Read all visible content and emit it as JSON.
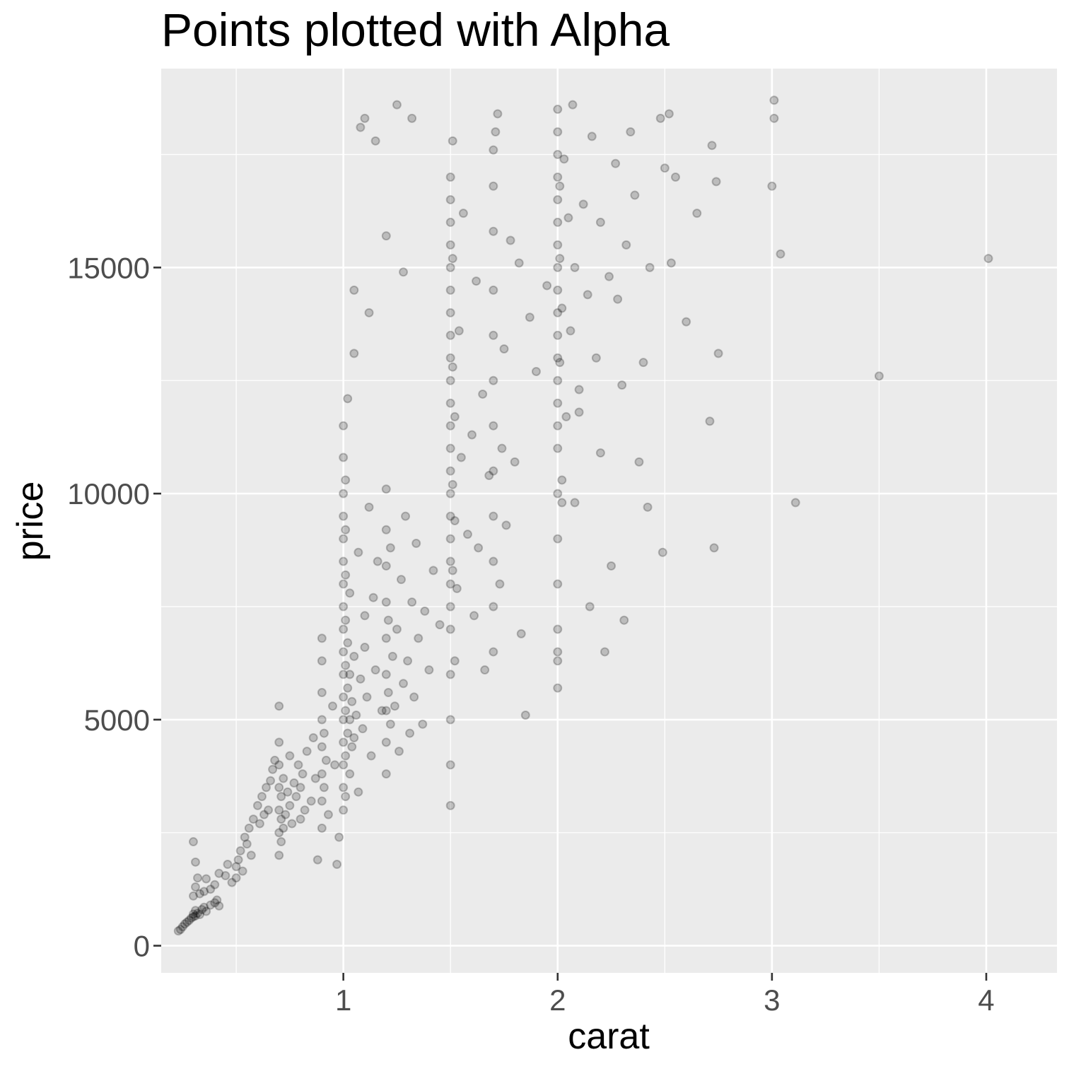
{
  "chart_data": {
    "type": "scatter",
    "title": "Points plotted with Alpha",
    "xlabel": "carat",
    "ylabel": "price",
    "xlim": [
      0.15,
      4.33
    ],
    "ylim": [
      -600,
      19400
    ],
    "x_ticks": [
      1,
      2,
      3,
      4
    ],
    "x_tick_labels": [
      "1",
      "2",
      "3",
      "4"
    ],
    "y_ticks": [
      0,
      5000,
      10000,
      15000
    ],
    "y_tick_labels": [
      "0",
      "5000",
      "10000",
      "15000"
    ],
    "grid": true,
    "point_alpha": 0.2,
    "points": [
      [
        0.23,
        326
      ],
      [
        0.24,
        360
      ],
      [
        0.25,
        420
      ],
      [
        0.26,
        480
      ],
      [
        0.27,
        520
      ],
      [
        0.28,
        560
      ],
      [
        0.29,
        610
      ],
      [
        0.3,
        640
      ],
      [
        0.3,
        700
      ],
      [
        0.31,
        660
      ],
      [
        0.31,
        780
      ],
      [
        0.32,
        720
      ],
      [
        0.33,
        690
      ],
      [
        0.34,
        800
      ],
      [
        0.35,
        850
      ],
      [
        0.36,
        760
      ],
      [
        0.38,
        900
      ],
      [
        0.4,
        950
      ],
      [
        0.41,
        1010
      ],
      [
        0.42,
        880
      ],
      [
        0.3,
        1100
      ],
      [
        0.31,
        1300
      ],
      [
        0.32,
        1500
      ],
      [
        0.3,
        2300
      ],
      [
        0.31,
        1850
      ],
      [
        0.33,
        1150
      ],
      [
        0.35,
        1200
      ],
      [
        0.36,
        1480
      ],
      [
        0.38,
        1250
      ],
      [
        0.4,
        1350
      ],
      [
        0.42,
        1600
      ],
      [
        0.45,
        1550
      ],
      [
        0.46,
        1800
      ],
      [
        0.48,
        1400
      ],
      [
        0.5,
        1500
      ],
      [
        0.5,
        1750
      ],
      [
        0.51,
        1900
      ],
      [
        0.52,
        2100
      ],
      [
        0.53,
        1650
      ],
      [
        0.54,
        2400
      ],
      [
        0.55,
        2250
      ],
      [
        0.56,
        2600
      ],
      [
        0.57,
        2000
      ],
      [
        0.58,
        2800
      ],
      [
        0.6,
        3100
      ],
      [
        0.61,
        2700
      ],
      [
        0.62,
        3300
      ],
      [
        0.63,
        2900
      ],
      [
        0.64,
        3500
      ],
      [
        0.65,
        3000
      ],
      [
        0.66,
        3650
      ],
      [
        0.67,
        3900
      ],
      [
        0.68,
        4100
      ],
      [
        0.7,
        2000
      ],
      [
        0.7,
        2500
      ],
      [
        0.7,
        3000
      ],
      [
        0.7,
        3500
      ],
      [
        0.7,
        4000
      ],
      [
        0.7,
        4500
      ],
      [
        0.7,
        5300
      ],
      [
        0.71,
        2300
      ],
      [
        0.71,
        2800
      ],
      [
        0.71,
        3300
      ],
      [
        0.72,
        2600
      ],
      [
        0.72,
        3700
      ],
      [
        0.73,
        2900
      ],
      [
        0.74,
        3400
      ],
      [
        0.75,
        3100
      ],
      [
        0.75,
        4200
      ],
      [
        0.76,
        2700
      ],
      [
        0.77,
        3600
      ],
      [
        0.78,
        3300
      ],
      [
        0.79,
        4000
      ],
      [
        0.8,
        2800
      ],
      [
        0.8,
        3500
      ],
      [
        0.81,
        3800
      ],
      [
        0.82,
        3000
      ],
      [
        0.83,
        4300
      ],
      [
        0.85,
        3200
      ],
      [
        0.86,
        4600
      ],
      [
        0.87,
        3700
      ],
      [
        0.88,
        1900
      ],
      [
        0.9,
        2600
      ],
      [
        0.9,
        3200
      ],
      [
        0.9,
        3800
      ],
      [
        0.9,
        4400
      ],
      [
        0.9,
        5000
      ],
      [
        0.9,
        5600
      ],
      [
        0.9,
        6300
      ],
      [
        0.9,
        6800
      ],
      [
        0.91,
        3500
      ],
      [
        0.91,
        4700
      ],
      [
        0.92,
        4100
      ],
      [
        0.93,
        2900
      ],
      [
        0.95,
        5300
      ],
      [
        0.96,
        4000
      ],
      [
        0.97,
        1800
      ],
      [
        0.98,
        2400
      ],
      [
        1.0,
        3000
      ],
      [
        1.0,
        3500
      ],
      [
        1.0,
        4000
      ],
      [
        1.0,
        4500
      ],
      [
        1.0,
        5000
      ],
      [
        1.0,
        5500
      ],
      [
        1.0,
        6000
      ],
      [
        1.0,
        6500
      ],
      [
        1.0,
        7000
      ],
      [
        1.0,
        7500
      ],
      [
        1.0,
        8000
      ],
      [
        1.0,
        8500
      ],
      [
        1.0,
        9000
      ],
      [
        1.0,
        9500
      ],
      [
        1.0,
        10000
      ],
      [
        1.0,
        10800
      ],
      [
        1.0,
        11500
      ],
      [
        1.01,
        3300
      ],
      [
        1.01,
        4200
      ],
      [
        1.01,
        5200
      ],
      [
        1.01,
        6200
      ],
      [
        1.01,
        7200
      ],
      [
        1.01,
        8200
      ],
      [
        1.01,
        9200
      ],
      [
        1.01,
        10300
      ],
      [
        1.02,
        4700
      ],
      [
        1.02,
        5700
      ],
      [
        1.02,
        6700
      ],
      [
        1.02,
        12100
      ],
      [
        1.03,
        3800
      ],
      [
        1.03,
        5000
      ],
      [
        1.03,
        6000
      ],
      [
        1.03,
        7800
      ],
      [
        1.04,
        4400
      ],
      [
        1.04,
        5400
      ],
      [
        1.05,
        4600
      ],
      [
        1.05,
        6400
      ],
      [
        1.06,
        5100
      ],
      [
        1.07,
        3400
      ],
      [
        1.07,
        8700
      ],
      [
        1.08,
        5900
      ],
      [
        1.09,
        4800
      ],
      [
        1.1,
        6600
      ],
      [
        1.1,
        7300
      ],
      [
        1.11,
        5500
      ],
      [
        1.12,
        9700
      ],
      [
        1.13,
        4200
      ],
      [
        1.14,
        7700
      ],
      [
        1.15,
        6100
      ],
      [
        1.16,
        8500
      ],
      [
        1.18,
        5200
      ],
      [
        1.2,
        3800
      ],
      [
        1.2,
        4500
      ],
      [
        1.2,
        5200
      ],
      [
        1.2,
        6000
      ],
      [
        1.2,
        6800
      ],
      [
        1.2,
        7600
      ],
      [
        1.2,
        8400
      ],
      [
        1.2,
        9200
      ],
      [
        1.2,
        10100
      ],
      [
        1.21,
        5600
      ],
      [
        1.21,
        7200
      ],
      [
        1.22,
        4900
      ],
      [
        1.22,
        8800
      ],
      [
        1.23,
        6400
      ],
      [
        1.24,
        5300
      ],
      [
        1.25,
        7000
      ],
      [
        1.26,
        4300
      ],
      [
        1.27,
        8100
      ],
      [
        1.28,
        5800
      ],
      [
        1.29,
        9500
      ],
      [
        1.3,
        6300
      ],
      [
        1.31,
        4700
      ],
      [
        1.32,
        7600
      ],
      [
        1.33,
        5500
      ],
      [
        1.34,
        8900
      ],
      [
        1.35,
        6800
      ],
      [
        1.37,
        4900
      ],
      [
        1.38,
        7400
      ],
      [
        1.4,
        6100
      ],
      [
        1.42,
        8300
      ],
      [
        1.45,
        7100
      ],
      [
        1.5,
        3100
      ],
      [
        1.5,
        4000
      ],
      [
        1.5,
        5000
      ],
      [
        1.5,
        6000
      ],
      [
        1.5,
        7000
      ],
      [
        1.5,
        7500
      ],
      [
        1.5,
        8000
      ],
      [
        1.5,
        8500
      ],
      [
        1.5,
        9000
      ],
      [
        1.5,
        9500
      ],
      [
        1.5,
        10000
      ],
      [
        1.5,
        10500
      ],
      [
        1.5,
        11000
      ],
      [
        1.5,
        11500
      ],
      [
        1.5,
        12000
      ],
      [
        1.5,
        12500
      ],
      [
        1.5,
        13000
      ],
      [
        1.5,
        13500
      ],
      [
        1.5,
        14000
      ],
      [
        1.5,
        14500
      ],
      [
        1.5,
        15000
      ],
      [
        1.5,
        15500
      ],
      [
        1.5,
        16000
      ],
      [
        1.5,
        16500
      ],
      [
        1.5,
        17000
      ],
      [
        1.51,
        8300
      ],
      [
        1.51,
        10200
      ],
      [
        1.51,
        12800
      ],
      [
        1.51,
        15200
      ],
      [
        1.51,
        17800
      ],
      [
        1.52,
        6300
      ],
      [
        1.52,
        9400
      ],
      [
        1.52,
        11700
      ],
      [
        1.53,
        7900
      ],
      [
        1.54,
        13600
      ],
      [
        1.55,
        10800
      ],
      [
        1.56,
        16200
      ],
      [
        1.58,
        9100
      ],
      [
        1.6,
        11300
      ],
      [
        1.61,
        7300
      ],
      [
        1.62,
        14700
      ],
      [
        1.63,
        8800
      ],
      [
        1.65,
        12200
      ],
      [
        1.66,
        6100
      ],
      [
        1.68,
        10400
      ],
      [
        1.7,
        6500
      ],
      [
        1.7,
        7500
      ],
      [
        1.7,
        8500
      ],
      [
        1.7,
        9500
      ],
      [
        1.7,
        10500
      ],
      [
        1.7,
        11500
      ],
      [
        1.7,
        12500
      ],
      [
        1.7,
        13500
      ],
      [
        1.7,
        14500
      ],
      [
        1.7,
        15800
      ],
      [
        1.7,
        16800
      ],
      [
        1.7,
        17600
      ],
      [
        1.71,
        18000
      ],
      [
        1.72,
        18400
      ],
      [
        1.73,
        8000
      ],
      [
        1.74,
        11000
      ],
      [
        1.75,
        13200
      ],
      [
        1.76,
        9300
      ],
      [
        1.78,
        15600
      ],
      [
        1.8,
        10700
      ],
      [
        1.82,
        15100
      ],
      [
        1.83,
        6900
      ],
      [
        1.85,
        5100
      ],
      [
        1.87,
        13900
      ],
      [
        1.9,
        12700
      ],
      [
        1.1,
        18300
      ],
      [
        1.15,
        17800
      ],
      [
        1.08,
        18100
      ],
      [
        1.25,
        18600
      ],
      [
        1.32,
        18300
      ],
      [
        1.05,
        14500
      ],
      [
        1.05,
        13100
      ],
      [
        1.12,
        14000
      ],
      [
        1.2,
        15700
      ],
      [
        1.28,
        14900
      ],
      [
        2.0,
        5700
      ],
      [
        2.0,
        6300
      ],
      [
        2.0,
        7000
      ],
      [
        2.0,
        8000
      ],
      [
        2.0,
        9000
      ],
      [
        2.0,
        10000
      ],
      [
        2.0,
        11000
      ],
      [
        2.0,
        11500
      ],
      [
        2.0,
        12000
      ],
      [
        2.0,
        12500
      ],
      [
        2.0,
        13000
      ],
      [
        2.0,
        13500
      ],
      [
        2.0,
        14000
      ],
      [
        2.0,
        14500
      ],
      [
        2.0,
        15000
      ],
      [
        2.0,
        15500
      ],
      [
        2.0,
        16000
      ],
      [
        2.0,
        16500
      ],
      [
        2.0,
        17000
      ],
      [
        2.0,
        17500
      ],
      [
        2.0,
        18000
      ],
      [
        2.0,
        18500
      ],
      [
        2.01,
        15200
      ],
      [
        2.01,
        16800
      ],
      [
        2.01,
        12900
      ],
      [
        2.02,
        10300
      ],
      [
        2.02,
        14100
      ],
      [
        2.03,
        17400
      ],
      [
        2.04,
        11700
      ],
      [
        2.05,
        16100
      ],
      [
        2.06,
        13600
      ],
      [
        2.07,
        18600
      ],
      [
        2.08,
        15000
      ],
      [
        2.1,
        12300
      ],
      [
        2.12,
        16400
      ],
      [
        2.14,
        14400
      ],
      [
        2.15,
        7500
      ],
      [
        2.16,
        17900
      ],
      [
        2.18,
        13000
      ],
      [
        2.2,
        16000
      ],
      [
        2.22,
        6500
      ],
      [
        2.24,
        14800
      ],
      [
        2.25,
        8400
      ],
      [
        2.27,
        17300
      ],
      [
        2.3,
        12400
      ],
      [
        2.31,
        7200
      ],
      [
        2.32,
        15500
      ],
      [
        2.34,
        18000
      ],
      [
        2.36,
        16600
      ],
      [
        2.38,
        10700
      ],
      [
        2.42,
        9700
      ],
      [
        2.43,
        15000
      ],
      [
        2.48,
        18300
      ],
      [
        2.49,
        8700
      ],
      [
        2.5,
        17200
      ],
      [
        2.52,
        18400
      ],
      [
        2.53,
        15100
      ],
      [
        2.55,
        17000
      ],
      [
        2.6,
        13800
      ],
      [
        2.65,
        16200
      ],
      [
        2.71,
        11600
      ],
      [
        2.72,
        17700
      ],
      [
        2.73,
        8800
      ],
      [
        2.74,
        16900
      ],
      [
        2.75,
        13100
      ],
      [
        3.0,
        16800
      ],
      [
        3.01,
        18300
      ],
      [
        3.01,
        18700
      ],
      [
        3.04,
        15300
      ],
      [
        3.11,
        9800
      ],
      [
        3.5,
        12600
      ],
      [
        4.01,
        15200
      ],
      [
        2.0,
        6500
      ],
      [
        2.02,
        9800
      ],
      [
        2.08,
        9800
      ],
      [
        1.95,
        14600
      ],
      [
        2.1,
        11800
      ],
      [
        2.2,
        10900
      ],
      [
        2.28,
        14300
      ],
      [
        2.4,
        12900
      ]
    ]
  }
}
